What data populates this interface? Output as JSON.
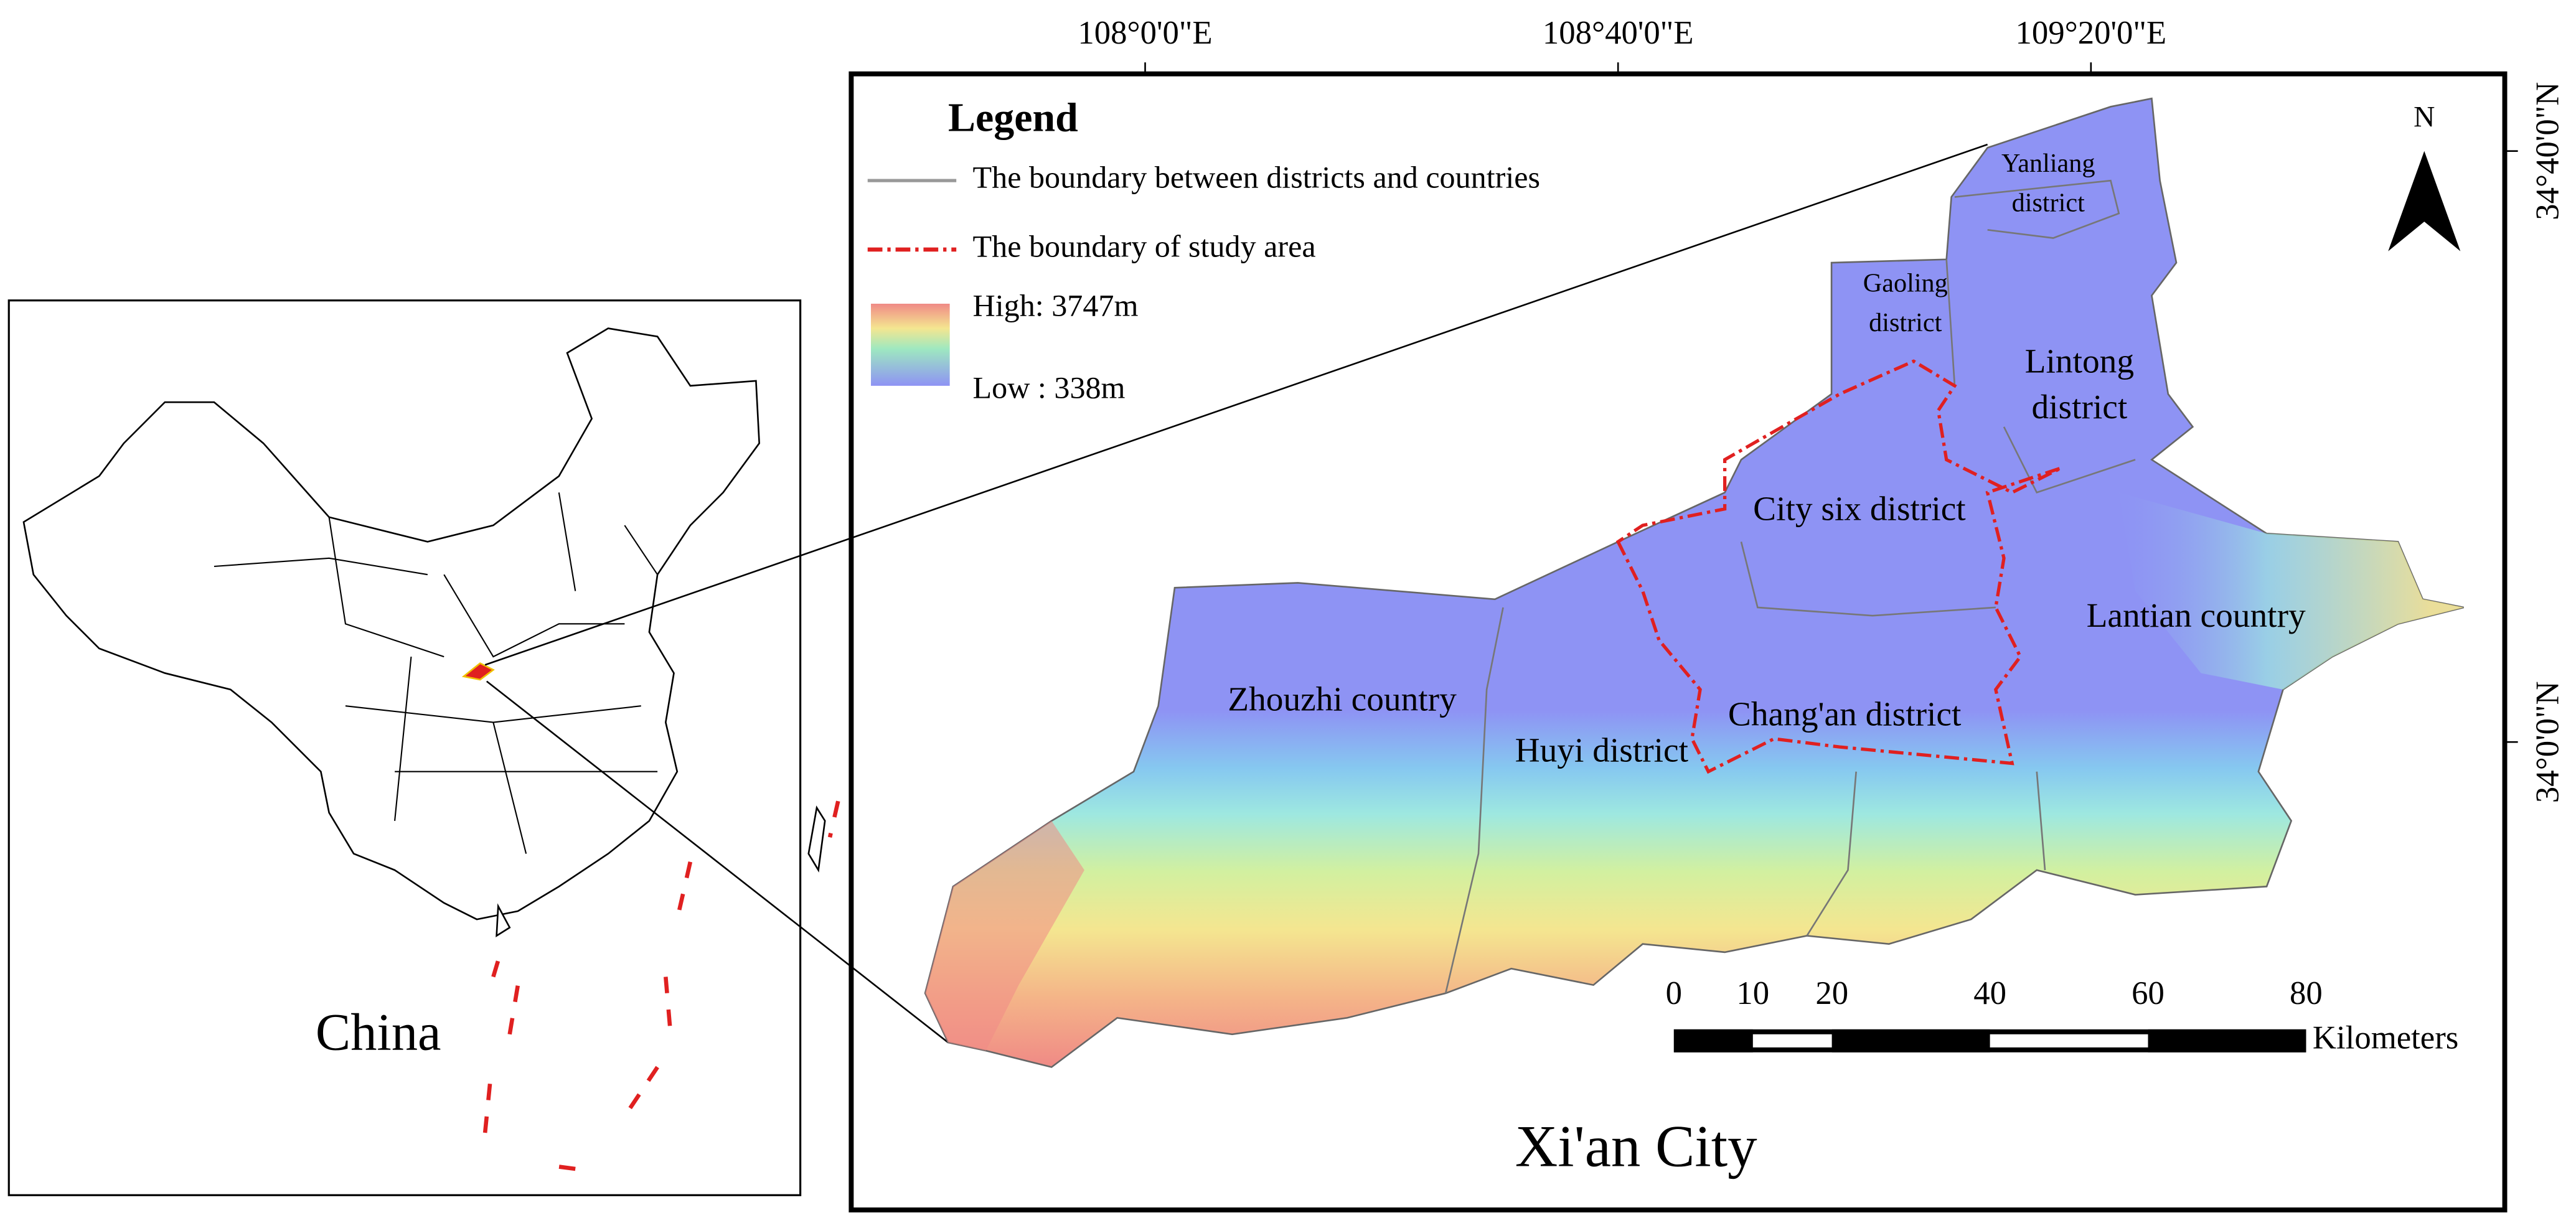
{
  "title": "Xi'an City",
  "inset_label": "China",
  "north": "N",
  "longitude_labels": [
    "108°0'0\"E",
    "108°40'0\"E",
    "109°20'0\"E"
  ],
  "latitude_labels": [
    "34°40'0\"N",
    "34°0'0\"N"
  ],
  "legend": {
    "title": "Legend",
    "items": [
      "The boundary between districts and countries",
      "The boundary of study area"
    ],
    "high": "High: 3747m",
    "low": "Low : 338m"
  },
  "districts": [
    {
      "label": [
        "Yanliang",
        "district"
      ]
    },
    {
      "label": [
        "Gaoling",
        "district"
      ]
    },
    {
      "label": [
        "Lintong",
        "district"
      ]
    },
    {
      "label": [
        "City six district"
      ]
    },
    {
      "label": [
        "Lantian country"
      ]
    },
    {
      "label": [
        "Zhouzhi country"
      ]
    },
    {
      "label": [
        "Huyi district"
      ]
    },
    {
      "label": [
        "Chang'an  district"
      ]
    }
  ],
  "scale_bar": {
    "ticks": [
      0,
      10,
      20,
      40,
      60,
      80
    ],
    "unit": "Kilometers"
  }
}
